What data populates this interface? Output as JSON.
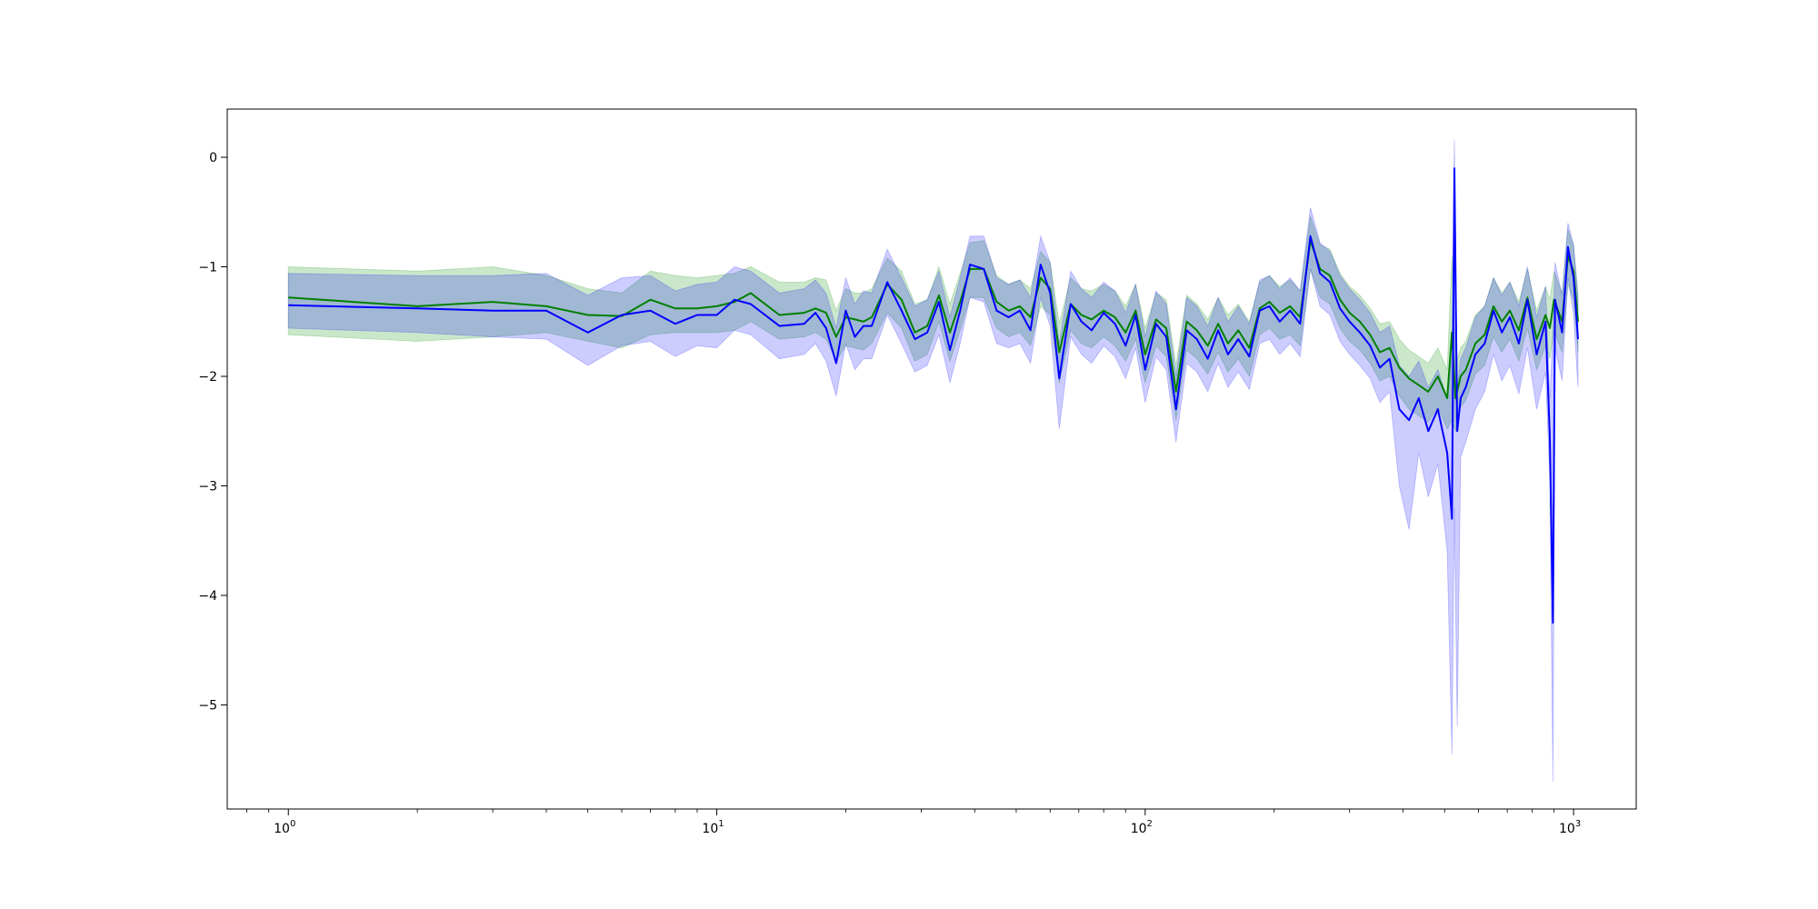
{
  "chart_data": {
    "type": "line",
    "title": "",
    "xlabel": "",
    "ylabel": "",
    "xscale": "log",
    "xlim": [
      0.72,
      1400
    ],
    "ylim": [
      -5.95,
      0.44
    ],
    "grid": false,
    "legend": "none",
    "x_ticks": [
      {
        "base": "10",
        "exp": "0",
        "value": 1
      },
      {
        "base": "10",
        "exp": "1",
        "value": 10
      },
      {
        "base": "10",
        "exp": "2",
        "value": 100
      },
      {
        "base": "10",
        "exp": "3",
        "value": 1000
      }
    ],
    "y_ticks": [
      {
        "label": "0",
        "value": 0
      },
      {
        "label": "−1",
        "value": -1
      },
      {
        "label": "−2",
        "value": -2
      },
      {
        "label": "−3",
        "value": -3
      },
      {
        "label": "−4",
        "value": -4
      },
      {
        "label": "−5",
        "value": -5
      }
    ],
    "series": [
      {
        "color": "#008000",
        "band_color": "#2ca02c",
        "band_opacity": 0.25,
        "points": [
          [
            1,
            -1.28,
            -1.0,
            -1.62
          ],
          [
            2,
            -1.36,
            -1.04,
            -1.68
          ],
          [
            3,
            -1.32,
            -1.0,
            -1.64
          ],
          [
            4,
            -1.36,
            -1.08,
            -1.6
          ],
          [
            5,
            -1.44,
            -1.2,
            -1.68
          ],
          [
            6,
            -1.45,
            -1.24,
            -1.74
          ],
          [
            7,
            -1.3,
            -1.04,
            -1.62
          ],
          [
            8,
            -1.38,
            -1.08,
            -1.6
          ],
          [
            9,
            -1.38,
            -1.1,
            -1.6
          ],
          [
            10,
            -1.36,
            -1.08,
            -1.6
          ],
          [
            11,
            -1.32,
            -1.06,
            -1.58
          ],
          [
            12,
            -1.24,
            -1.0,
            -1.5
          ],
          [
            14,
            -1.44,
            -1.14,
            -1.66
          ],
          [
            16,
            -1.42,
            -1.14,
            -1.64
          ],
          [
            17,
            -1.38,
            -1.1,
            -1.6
          ],
          [
            18,
            -1.42,
            -1.12,
            -1.66
          ],
          [
            19,
            -1.64,
            -1.4,
            -1.86
          ],
          [
            20,
            -1.46,
            -1.2,
            -1.72
          ],
          [
            21,
            -1.48,
            -1.24,
            -1.74
          ],
          [
            22,
            -1.5,
            -1.24,
            -1.76
          ],
          [
            23,
            -1.46,
            -1.2,
            -1.7
          ],
          [
            25,
            -1.16,
            -0.92,
            -1.42
          ],
          [
            27,
            -1.3,
            -1.04,
            -1.56
          ],
          [
            29,
            -1.6,
            -1.34,
            -1.86
          ],
          [
            31,
            -1.54,
            -1.3,
            -1.8
          ],
          [
            33,
            -1.26,
            -1.0,
            -1.5
          ],
          [
            35,
            -1.6,
            -1.34,
            -1.86
          ],
          [
            37,
            -1.32,
            -1.06,
            -1.58
          ],
          [
            39,
            -1.02,
            -0.78,
            -1.28
          ],
          [
            42,
            -1.02,
            -0.76,
            -1.28
          ],
          [
            45,
            -1.32,
            -1.08,
            -1.56
          ],
          [
            48,
            -1.4,
            -1.16,
            -1.64
          ],
          [
            51,
            -1.36,
            -1.12,
            -1.6
          ],
          [
            54,
            -1.46,
            -1.2,
            -1.72
          ],
          [
            57,
            -1.1,
            -0.86,
            -1.36
          ],
          [
            60,
            -1.2,
            -0.96,
            -1.44
          ],
          [
            63,
            -1.78,
            -1.52,
            -2.06
          ],
          [
            67,
            -1.34,
            -1.1,
            -1.58
          ],
          [
            71,
            -1.44,
            -1.2,
            -1.7
          ],
          [
            75,
            -1.48,
            -1.22,
            -1.74
          ],
          [
            80,
            -1.4,
            -1.16,
            -1.64
          ],
          [
            85,
            -1.46,
            -1.22,
            -1.72
          ],
          [
            90,
            -1.6,
            -1.36,
            -1.86
          ],
          [
            95,
            -1.4,
            -1.16,
            -1.66
          ],
          [
            100,
            -1.8,
            -1.56,
            -2.06
          ],
          [
            106,
            -1.48,
            -1.24,
            -1.72
          ],
          [
            112,
            -1.56,
            -1.3,
            -1.82
          ],
          [
            118,
            -2.14,
            -1.9,
            -2.4
          ],
          [
            125,
            -1.5,
            -1.26,
            -1.76
          ],
          [
            132,
            -1.58,
            -1.34,
            -1.84
          ],
          [
            140,
            -1.72,
            -1.48,
            -1.98
          ],
          [
            148,
            -1.52,
            -1.28,
            -1.78
          ],
          [
            156,
            -1.7,
            -1.44,
            -1.96
          ],
          [
            165,
            -1.58,
            -1.34,
            -1.84
          ],
          [
            175,
            -1.74,
            -1.5,
            -2.0
          ],
          [
            185,
            -1.38,
            -1.14,
            -1.62
          ],
          [
            195,
            -1.32,
            -1.08,
            -1.56
          ],
          [
            206,
            -1.42,
            -1.18,
            -1.66
          ],
          [
            218,
            -1.36,
            -1.12,
            -1.62
          ],
          [
            230,
            -1.46,
            -1.22,
            -1.72
          ],
          [
            243,
            -0.76,
            -0.54,
            -1.02
          ],
          [
            256,
            -1.02,
            -0.8,
            -1.28
          ],
          [
            270,
            -1.08,
            -0.84,
            -1.34
          ],
          [
            285,
            -1.3,
            -1.06,
            -1.56
          ],
          [
            300,
            -1.42,
            -1.18,
            -1.68
          ],
          [
            317,
            -1.5,
            -1.26,
            -1.76
          ],
          [
            335,
            -1.62,
            -1.38,
            -1.88
          ],
          [
            353,
            -1.78,
            -1.52,
            -2.04
          ],
          [
            372,
            -1.74,
            -1.5,
            -2.0
          ],
          [
            392,
            -1.92,
            -1.66,
            -2.18
          ],
          [
            413,
            -2.02,
            -1.76,
            -2.3
          ],
          [
            435,
            -2.08,
            -1.82,
            -2.36
          ],
          [
            458,
            -2.14,
            -1.88,
            -2.42
          ],
          [
            482,
            -2.0,
            -1.74,
            -2.28
          ],
          [
            507,
            -2.2,
            -1.94,
            -2.48
          ],
          [
            520,
            -1.6,
            -0.9,
            -2.4
          ],
          [
            530,
            -2.2,
            -1.9,
            -2.5
          ],
          [
            545,
            -2.0,
            -1.74,
            -2.28
          ],
          [
            560,
            -1.94,
            -1.68,
            -2.22
          ],
          [
            590,
            -1.7,
            -1.44,
            -1.98
          ],
          [
            620,
            -1.62,
            -1.36,
            -1.9
          ],
          [
            650,
            -1.36,
            -1.1,
            -1.64
          ],
          [
            680,
            -1.5,
            -1.24,
            -1.78
          ],
          [
            710,
            -1.4,
            -1.14,
            -1.66
          ],
          [
            745,
            -1.58,
            -1.32,
            -1.86
          ],
          [
            780,
            -1.28,
            -1.02,
            -1.56
          ],
          [
            820,
            -1.66,
            -1.4,
            -1.94
          ],
          [
            860,
            -1.44,
            -1.18,
            -1.72
          ],
          [
            880,
            -1.56,
            -1.3,
            -1.84
          ],
          [
            900,
            -1.3,
            -1.04,
            -1.58
          ],
          [
            940,
            -1.5,
            -1.24,
            -1.78
          ],
          [
            970,
            -0.9,
            -0.66,
            -1.16
          ],
          [
            1000,
            -1.04,
            -0.8,
            -1.3
          ],
          [
            1024,
            -1.5,
            -1.24,
            -1.78
          ]
        ]
      },
      {
        "color": "#0000ff",
        "band_color": "#0000ff",
        "band_opacity": 0.2,
        "points": [
          [
            1,
            -1.35,
            -1.06,
            -1.56
          ],
          [
            2,
            -1.38,
            -1.08,
            -1.6
          ],
          [
            3,
            -1.4,
            -1.08,
            -1.64
          ],
          [
            4,
            -1.4,
            -1.06,
            -1.66
          ],
          [
            5,
            -1.6,
            -1.26,
            -1.9
          ],
          [
            6,
            -1.44,
            -1.1,
            -1.72
          ],
          [
            7,
            -1.4,
            -1.08,
            -1.68
          ],
          [
            8,
            -1.52,
            -1.22,
            -1.82
          ],
          [
            9,
            -1.44,
            -1.16,
            -1.72
          ],
          [
            10,
            -1.44,
            -1.14,
            -1.74
          ],
          [
            11,
            -1.3,
            -1.0,
            -1.58
          ],
          [
            12,
            -1.34,
            -1.04,
            -1.62
          ],
          [
            14,
            -1.54,
            -1.24,
            -1.84
          ],
          [
            16,
            -1.52,
            -1.2,
            -1.8
          ],
          [
            17,
            -1.42,
            -1.12,
            -1.7
          ],
          [
            18,
            -1.56,
            -1.24,
            -1.86
          ],
          [
            19,
            -1.88,
            -1.56,
            -2.18
          ],
          [
            20,
            -1.4,
            -1.1,
            -1.7
          ],
          [
            21,
            -1.64,
            -1.34,
            -1.94
          ],
          [
            22,
            -1.54,
            -1.22,
            -1.84
          ],
          [
            23,
            -1.54,
            -1.24,
            -1.84
          ],
          [
            25,
            -1.14,
            -0.84,
            -1.44
          ],
          [
            27,
            -1.4,
            -1.1,
            -1.7
          ],
          [
            29,
            -1.66,
            -1.36,
            -1.96
          ],
          [
            31,
            -1.6,
            -1.3,
            -1.9
          ],
          [
            33,
            -1.32,
            -1.04,
            -1.62
          ],
          [
            35,
            -1.76,
            -1.46,
            -2.06
          ],
          [
            37,
            -1.4,
            -1.1,
            -1.7
          ],
          [
            39,
            -0.98,
            -0.72,
            -1.28
          ],
          [
            42,
            -1.02,
            -0.72,
            -1.32
          ],
          [
            45,
            -1.4,
            -1.1,
            -1.7
          ],
          [
            48,
            -1.46,
            -1.16,
            -1.74
          ],
          [
            51,
            -1.4,
            -1.12,
            -1.7
          ],
          [
            54,
            -1.58,
            -1.28,
            -1.88
          ],
          [
            57,
            -0.98,
            -0.72,
            -1.28
          ],
          [
            60,
            -1.24,
            -0.96,
            -1.54
          ],
          [
            63,
            -2.02,
            -1.7,
            -2.48
          ],
          [
            67,
            -1.34,
            -1.04,
            -1.64
          ],
          [
            71,
            -1.5,
            -1.2,
            -1.8
          ],
          [
            75,
            -1.58,
            -1.28,
            -1.88
          ],
          [
            80,
            -1.42,
            -1.14,
            -1.72
          ],
          [
            85,
            -1.52,
            -1.22,
            -1.82
          ],
          [
            90,
            -1.72,
            -1.42,
            -2.02
          ],
          [
            95,
            -1.44,
            -1.16,
            -1.74
          ],
          [
            100,
            -1.94,
            -1.64,
            -2.24
          ],
          [
            106,
            -1.52,
            -1.22,
            -1.82
          ],
          [
            112,
            -1.64,
            -1.34,
            -1.94
          ],
          [
            118,
            -2.3,
            -2.0,
            -2.6
          ],
          [
            125,
            -1.58,
            -1.28,
            -1.88
          ],
          [
            132,
            -1.66,
            -1.36,
            -1.96
          ],
          [
            140,
            -1.84,
            -1.54,
            -2.14
          ],
          [
            148,
            -1.58,
            -1.28,
            -1.88
          ],
          [
            156,
            -1.8,
            -1.5,
            -2.1
          ],
          [
            165,
            -1.66,
            -1.36,
            -1.96
          ],
          [
            175,
            -1.82,
            -1.52,
            -2.12
          ],
          [
            185,
            -1.4,
            -1.12,
            -1.7
          ],
          [
            195,
            -1.36,
            -1.08,
            -1.66
          ],
          [
            206,
            -1.5,
            -1.2,
            -1.8
          ],
          [
            218,
            -1.4,
            -1.1,
            -1.7
          ],
          [
            230,
            -1.52,
            -1.22,
            -1.82
          ],
          [
            243,
            -0.72,
            -0.46,
            -1.02
          ],
          [
            256,
            -1.06,
            -0.78,
            -1.36
          ],
          [
            270,
            -1.14,
            -0.86,
            -1.44
          ],
          [
            285,
            -1.38,
            -1.08,
            -1.68
          ],
          [
            300,
            -1.5,
            -1.2,
            -1.8
          ],
          [
            317,
            -1.6,
            -1.3,
            -1.9
          ],
          [
            335,
            -1.72,
            -1.42,
            -2.02
          ],
          [
            353,
            -1.92,
            -1.6,
            -2.24
          ],
          [
            372,
            -1.84,
            -1.54,
            -2.14
          ],
          [
            392,
            -2.3,
            -1.9,
            -3.0
          ],
          [
            413,
            -2.4,
            -2.0,
            -3.4
          ],
          [
            435,
            -2.2,
            -1.86,
            -2.7
          ],
          [
            458,
            -2.5,
            -2.1,
            -3.1
          ],
          [
            482,
            -2.3,
            -1.94,
            -2.8
          ],
          [
            507,
            -2.7,
            -2.2,
            -3.6
          ],
          [
            520,
            -3.3,
            -1.8,
            -5.45
          ],
          [
            527,
            -0.1,
            0.16,
            -3.2
          ],
          [
            535,
            -2.5,
            -2.1,
            -5.2
          ],
          [
            545,
            -2.2,
            -1.84,
            -2.74
          ],
          [
            560,
            -2.1,
            -1.74,
            -2.6
          ],
          [
            590,
            -1.8,
            -1.46,
            -2.3
          ],
          [
            620,
            -1.7,
            -1.36,
            -2.14
          ],
          [
            650,
            -1.4,
            -1.1,
            -1.8
          ],
          [
            680,
            -1.6,
            -1.26,
            -2.04
          ],
          [
            710,
            -1.46,
            -1.14,
            -1.9
          ],
          [
            745,
            -1.7,
            -1.36,
            -2.16
          ],
          [
            780,
            -1.3,
            -1.0,
            -1.74
          ],
          [
            820,
            -1.8,
            -1.46,
            -2.3
          ],
          [
            860,
            -1.5,
            -1.18,
            -1.96
          ],
          [
            880,
            -2.56,
            -2.2,
            -2.96
          ],
          [
            895,
            -4.25,
            -1.6,
            -5.7
          ],
          [
            905,
            -1.3,
            -0.96,
            -1.74
          ],
          [
            940,
            -1.6,
            -1.26,
            -2.04
          ],
          [
            970,
            -0.82,
            -0.6,
            -1.1
          ],
          [
            1000,
            -1.1,
            -0.8,
            -1.44
          ],
          [
            1024,
            -1.66,
            -1.3,
            -2.1
          ]
        ]
      }
    ]
  }
}
